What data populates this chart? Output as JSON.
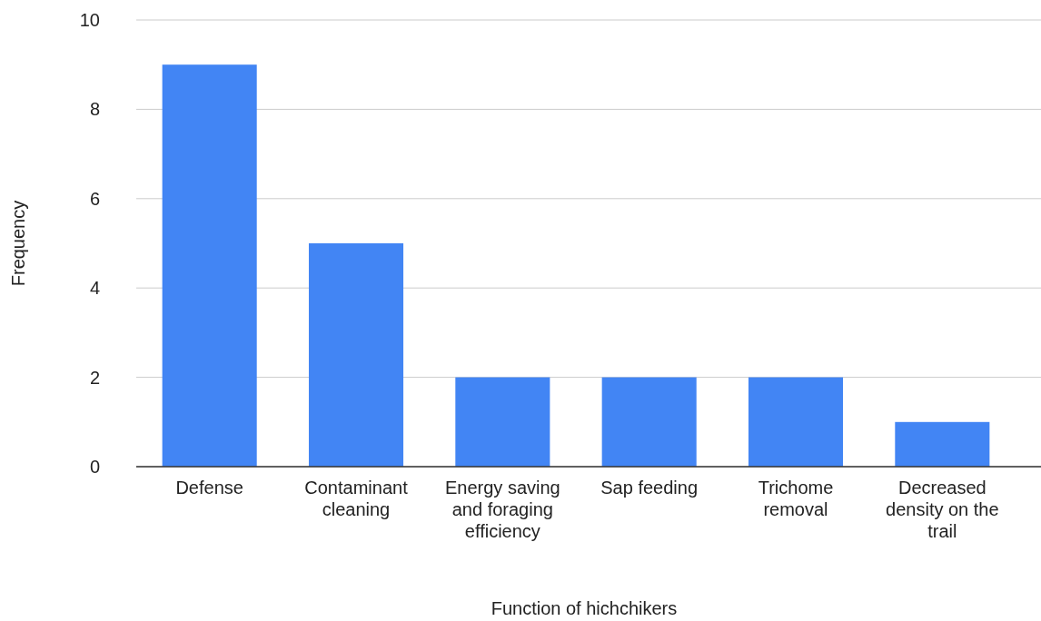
{
  "chart_data": {
    "type": "bar",
    "xlabel": "Function of hichchikers",
    "ylabel": "Frequency",
    "categories": [
      "Defense",
      "Contaminant cleaning",
      "Energy saving and foraging efficiency",
      "Sap feeding",
      "Trichome removal",
      "Decreased density on the trail"
    ],
    "values": [
      9,
      5,
      2,
      2,
      2,
      1
    ],
    "color": "#4285f4",
    "ylim": [
      0,
      10
    ],
    "yticks": [
      0,
      2,
      4,
      6,
      8,
      10
    ],
    "grid": "y"
  }
}
